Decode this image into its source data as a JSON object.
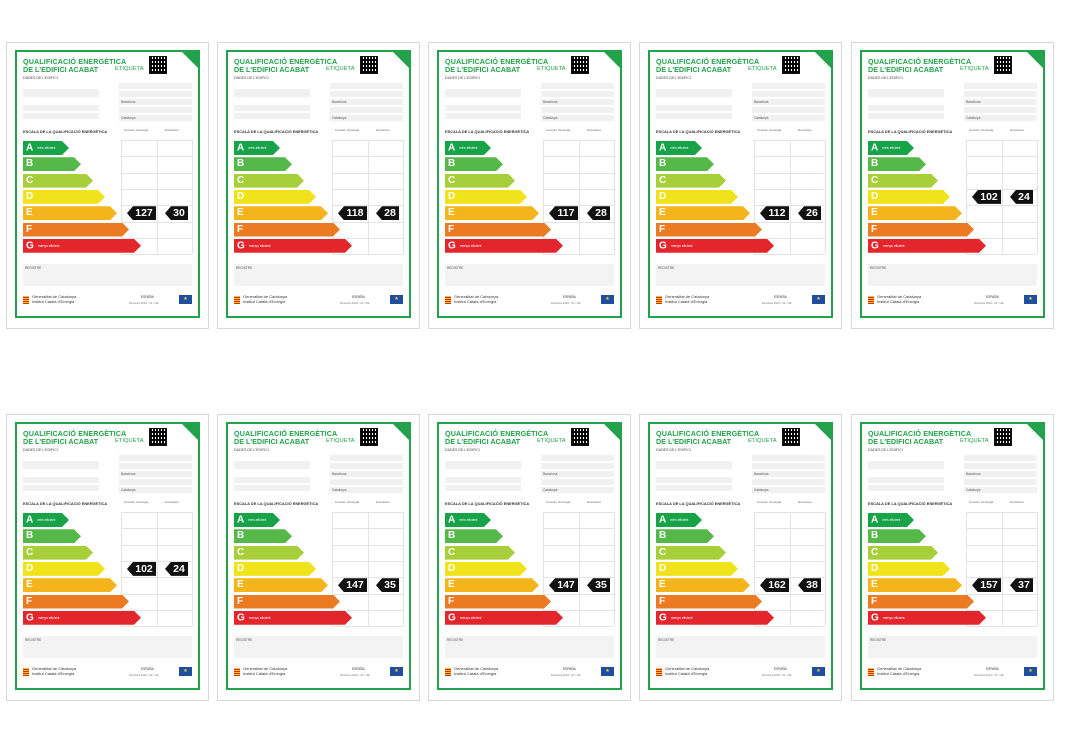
{
  "label_common": {
    "title_line1": "QUALIFICACIÓ ENERGÈTICA",
    "title_line2": "DE L'EDIFICI ACABAT",
    "etiqueta": "ETIQUETA",
    "dades": "DADES DE L'EDIFICI",
    "escala": "ESCALA DE LA QUALIFICACIÓ ENERGÈTICA",
    "col1_head": "Consum d'energia",
    "col2_head": "Emissions",
    "registre": "REGISTRE",
    "gencat_line1": "Generalitat de Catalunya",
    "gencat_line2": "Institut Català d'Energia",
    "espanya": "ESPAÑA",
    "directiva": "Directiva 2010 / 31 / UE",
    "eu_icon": "eu-flag-icon",
    "city": "Barcelona",
    "region": "Catalunya",
    "bar_a_sub": "més eficient",
    "bar_g_sub": "menys eficient"
  },
  "scale": [
    {
      "letter": "A",
      "color": "#18a348"
    },
    {
      "letter": "B",
      "color": "#56b848"
    },
    {
      "letter": "C",
      "color": "#a6cf3a"
    },
    {
      "letter": "D",
      "color": "#f0e21b"
    },
    {
      "letter": "E",
      "color": "#f4b41c"
    },
    {
      "letter": "F",
      "color": "#ec7a23"
    },
    {
      "letter": "G",
      "color": "#e3262c"
    }
  ],
  "labels": [
    {
      "consum": "127",
      "emissions": "30",
      "rating": "E"
    },
    {
      "consum": "118",
      "emissions": "28",
      "rating": "E"
    },
    {
      "consum": "117",
      "emissions": "28",
      "rating": "E"
    },
    {
      "consum": "112",
      "emissions": "26",
      "rating": "E"
    },
    {
      "consum": "102",
      "emissions": "24",
      "rating": "D"
    },
    {
      "consum": "102",
      "emissions": "24",
      "rating": "D"
    },
    {
      "consum": "147",
      "emissions": "35",
      "rating": "E"
    },
    {
      "consum": "147",
      "emissions": "35",
      "rating": "E"
    },
    {
      "consum": "162",
      "emissions": "38",
      "rating": "E"
    },
    {
      "consum": "157",
      "emissions": "37",
      "rating": "E"
    }
  ]
}
